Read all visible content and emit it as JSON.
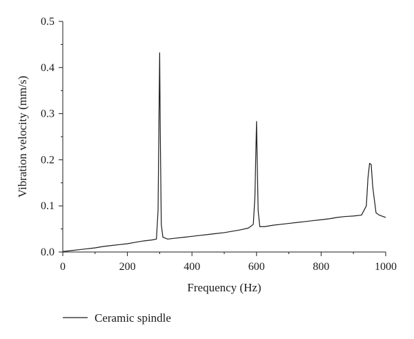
{
  "chart_data": {
    "type": "line",
    "xlabel": "Frequency (Hz)",
    "ylabel": "Vibration velocity (mm/s)",
    "xlim": [
      0,
      1000
    ],
    "ylim": [
      0,
      0.5
    ],
    "x_ticks": [
      0,
      200,
      400,
      600,
      800,
      1000
    ],
    "y_ticks": [
      0.0,
      0.1,
      0.2,
      0.3,
      0.4,
      0.5
    ],
    "x_tick_labels": [
      "0",
      "200",
      "400",
      "600",
      "800",
      "1000"
    ],
    "y_tick_labels": [
      "0.0",
      "0.1",
      "0.2",
      "0.3",
      "0.4",
      "0.5"
    ],
    "grid": false,
    "legend_position": "bottom-left",
    "series": [
      {
        "name": "Ceramic spindle",
        "color": "#1a1a1a",
        "x": [
          0,
          25,
          50,
          75,
          100,
          125,
          150,
          175,
          200,
          225,
          250,
          275,
          290,
          295,
          298,
          300,
          302,
          305,
          310,
          325,
          350,
          375,
          400,
          425,
          450,
          475,
          500,
          525,
          550,
          575,
          590,
          595,
          598,
          600,
          602,
          605,
          610,
          625,
          650,
          675,
          700,
          725,
          750,
          775,
          800,
          825,
          850,
          875,
          900,
          925,
          940,
          945,
          950,
          955,
          960,
          970,
          980,
          1000
        ],
        "values": [
          0.001,
          0.003,
          0.005,
          0.007,
          0.009,
          0.012,
          0.014,
          0.016,
          0.018,
          0.021,
          0.024,
          0.026,
          0.028,
          0.09,
          0.3,
          0.432,
          0.25,
          0.06,
          0.032,
          0.028,
          0.03,
          0.032,
          0.034,
          0.036,
          0.038,
          0.04,
          0.042,
          0.045,
          0.048,
          0.052,
          0.06,
          0.12,
          0.22,
          0.283,
          0.2,
          0.09,
          0.055,
          0.055,
          0.058,
          0.06,
          0.062,
          0.064,
          0.066,
          0.068,
          0.07,
          0.072,
          0.075,
          0.077,
          0.078,
          0.08,
          0.1,
          0.16,
          0.192,
          0.19,
          0.14,
          0.085,
          0.08,
          0.075
        ]
      }
    ]
  }
}
